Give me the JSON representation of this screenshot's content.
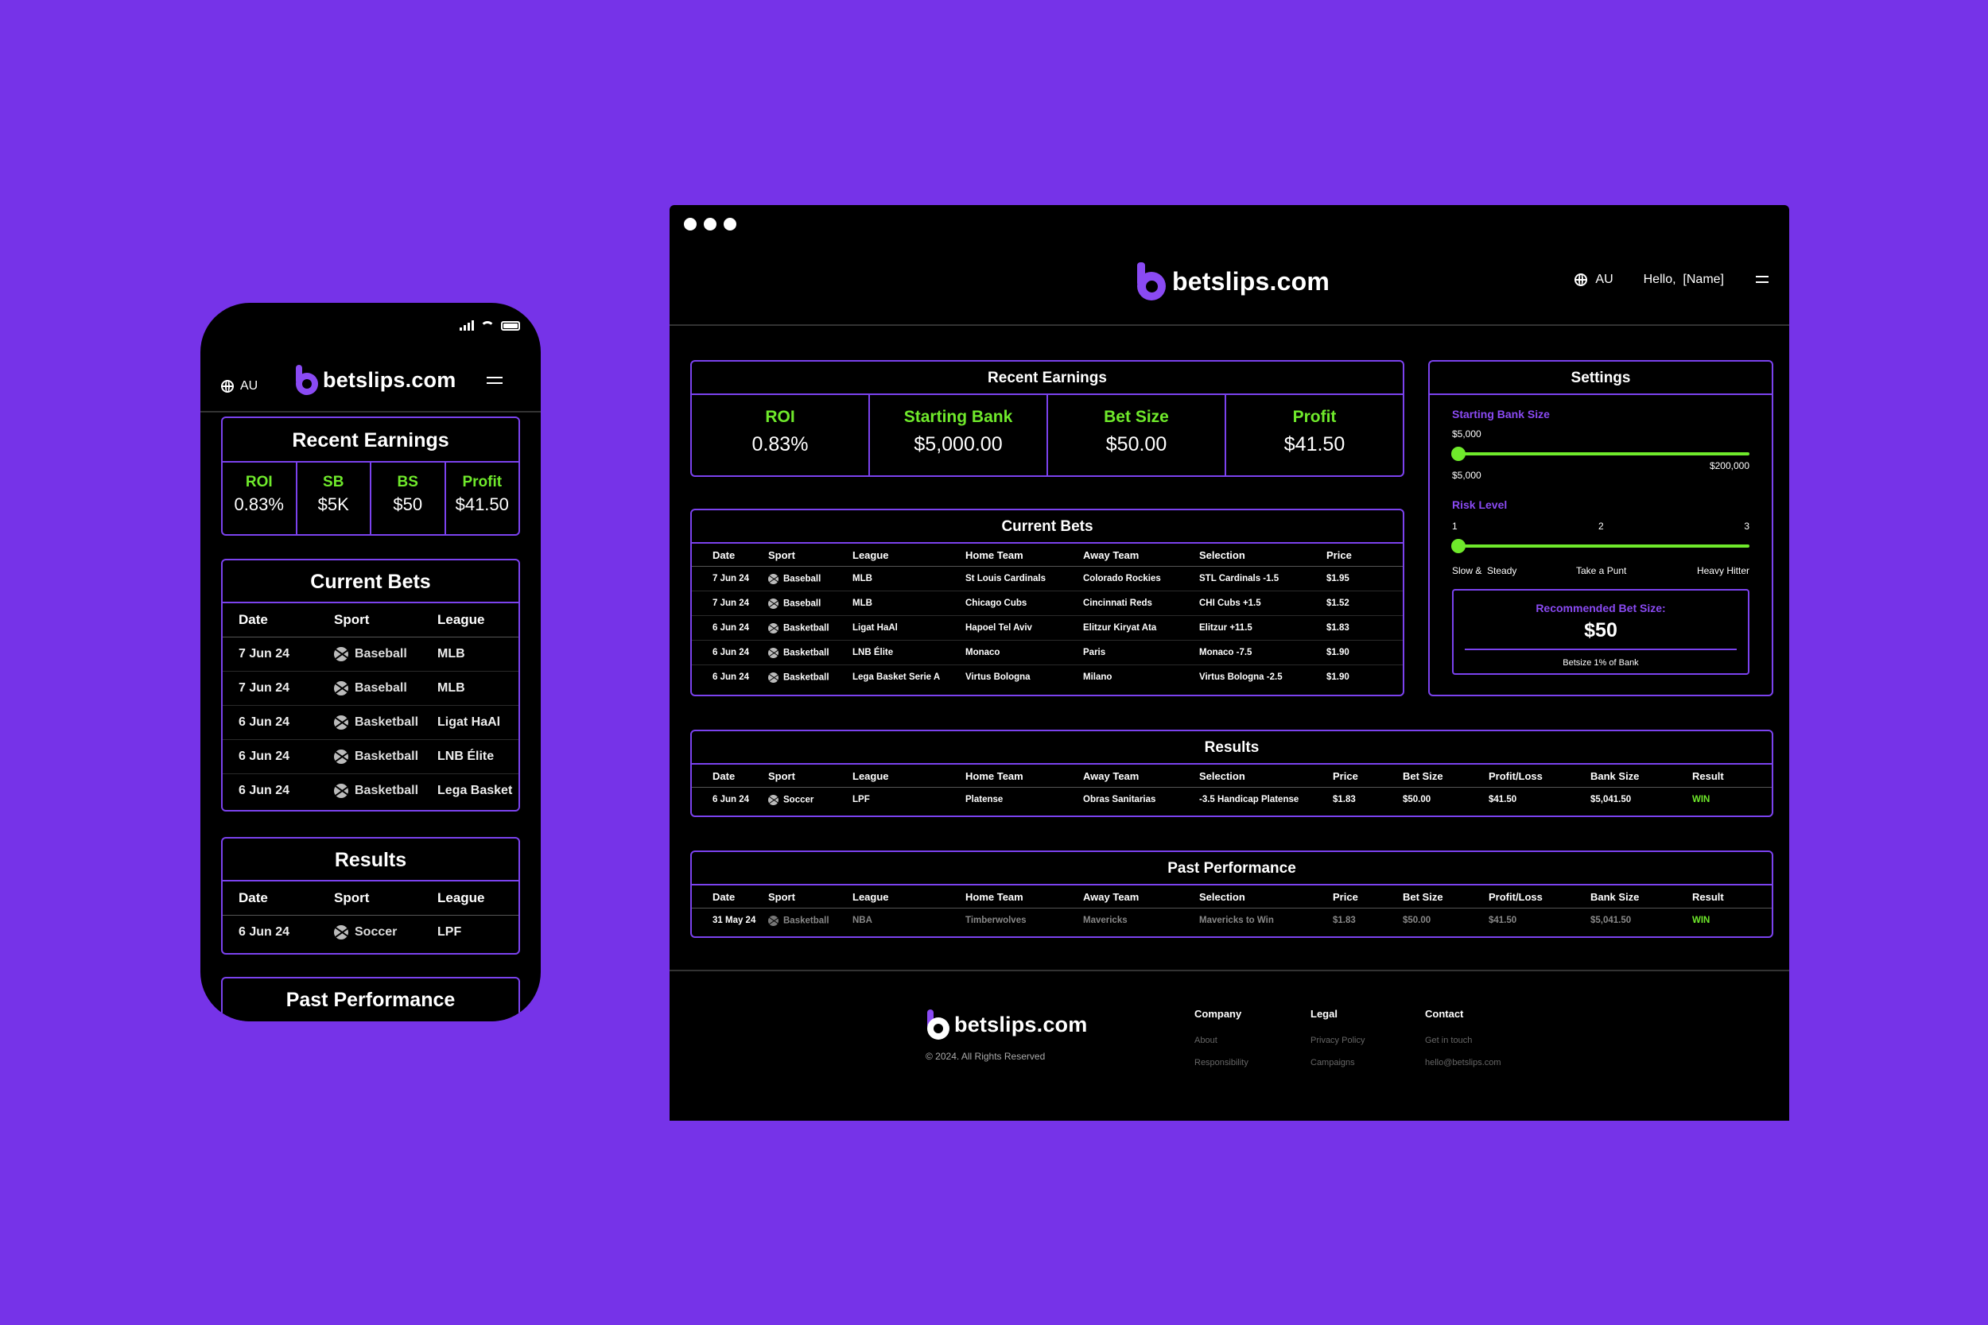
{
  "brand": {
    "logo_text": "betslips.com",
    "colors": {
      "background": "#7633e8",
      "accent": "#6fe92b",
      "border": "#7b42ee",
      "brand": "#8a4af3"
    }
  },
  "mobile": {
    "locale": "AU",
    "earnings": {
      "title": "Recent Earnings",
      "metrics": [
        {
          "label": "ROI",
          "value": "0.83%"
        },
        {
          "label": "SB",
          "value": "$5K"
        },
        {
          "label": "BS",
          "value": "$50"
        },
        {
          "label": "Profit",
          "value": "$41.50"
        }
      ]
    },
    "current_bets": {
      "title": "Current Bets",
      "columns": [
        "Date",
        "Sport",
        "League"
      ],
      "rows": [
        [
          "7 Jun 24",
          "Baseball",
          "MLB"
        ],
        [
          "7 Jun 24",
          "Baseball",
          "MLB"
        ],
        [
          "6 Jun 24",
          "Basketball",
          "Ligat HaAl"
        ],
        [
          "6 Jun 24",
          "Basketball",
          "LNB Élite"
        ],
        [
          "6 Jun 24",
          "Basketball",
          "Lega Basket"
        ]
      ]
    },
    "results": {
      "title": "Results",
      "columns": [
        "Date",
        "Sport",
        "League"
      ],
      "rows": [
        [
          "6 Jun 24",
          "Soccer",
          "LPF"
        ]
      ]
    },
    "past_performance": {
      "title": "Past Performance"
    }
  },
  "desktop": {
    "header": {
      "locale": "AU",
      "greeting": "Hello,  [Name]"
    },
    "earnings": {
      "title": "Recent Earnings",
      "metrics": [
        {
          "label": "ROI",
          "value": "0.83%"
        },
        {
          "label": "Starting Bank",
          "value": "$5,000.00"
        },
        {
          "label": "Bet Size",
          "value": "$50.00"
        },
        {
          "label": "Profit",
          "value": "$41.50"
        }
      ]
    },
    "current_bets": {
      "title": "Current Bets",
      "columns": [
        "Date",
        "Sport",
        "League",
        "Home Team",
        "Away Team",
        "Selection",
        "Price"
      ],
      "rows": [
        [
          "7 Jun 24",
          "Baseball",
          "MLB",
          "St Louis Cardinals",
          "Colorado Rockies",
          "STL Cardinals -1.5",
          "$1.95"
        ],
        [
          "7 Jun 24",
          "Baseball",
          "MLB",
          "Chicago Cubs",
          "Cincinnati Reds",
          "CHI Cubs +1.5",
          "$1.52"
        ],
        [
          "6 Jun 24",
          "Basketball",
          "Ligat HaAl",
          "Hapoel Tel Aviv",
          "Elitzur Kiryat Ata",
          "Elitzur +11.5",
          "$1.83"
        ],
        [
          "6 Jun 24",
          "Basketball",
          "LNB Élite",
          "Monaco",
          "Paris",
          "Monaco -7.5",
          "$1.90"
        ],
        [
          "6 Jun 24",
          "Basketball",
          "Lega Basket Serie A",
          "Virtus Bologna",
          "Milano",
          "Virtus Bologna -2.5",
          "$1.90"
        ]
      ]
    },
    "settings": {
      "title": "Settings",
      "bank_label": "Starting Bank Size",
      "bank_value": "$5,000",
      "bank_min": "$5,000",
      "bank_max": "$200,000",
      "bank_fraction": 0,
      "risk_label": "Risk Level",
      "risk_ticks": [
        "1",
        "2",
        "3"
      ],
      "risk_names": [
        "Slow &  Steady",
        "Take a Punt",
        "Heavy Hitter"
      ],
      "risk_fraction": 0,
      "recommended_title": "Recommended Bet Size:",
      "recommended_value": "$50",
      "recommended_note": "Betsize 1% of Bank"
    },
    "results": {
      "title": "Results",
      "columns": [
        "Date",
        "Sport",
        "League",
        "Home Team",
        "Away Team",
        "Selection",
        "Price",
        "Bet Size",
        "Profit/Loss",
        "Bank Size",
        "Result"
      ],
      "rows": [
        [
          "6 Jun 24",
          "Soccer",
          "LPF",
          "Platense",
          "Obras Sanitarias",
          "-3.5 Handicap Platense",
          "$1.83",
          "$50.00",
          "$41.50",
          "$5,041.50",
          "WIN"
        ]
      ]
    },
    "past_performance": {
      "title": "Past Performance",
      "columns": [
        "Date",
        "Sport",
        "League",
        "Home Team",
        "Away Team",
        "Selection",
        "Price",
        "Bet Size",
        "Profit/Loss",
        "Bank Size",
        "Result"
      ],
      "rows": [
        [
          "31 May 24",
          "Basketball",
          "NBA",
          "Timberwolves",
          "Mavericks",
          "Mavericks to Win",
          "$1.83",
          "$50.00",
          "$41.50",
          "$5,041.50",
          "WIN"
        ]
      ]
    },
    "footer": {
      "copyright": "© 2024. All Rights Reserved",
      "columns": [
        {
          "heading": "Company",
          "links": [
            "About",
            "Responsibility"
          ]
        },
        {
          "heading": "Legal",
          "links": [
            "Privacy Policy",
            "Campaigns"
          ]
        },
        {
          "heading": "Contact",
          "links": [
            "Get in touch",
            "hello@betslips.com"
          ]
        }
      ]
    }
  }
}
